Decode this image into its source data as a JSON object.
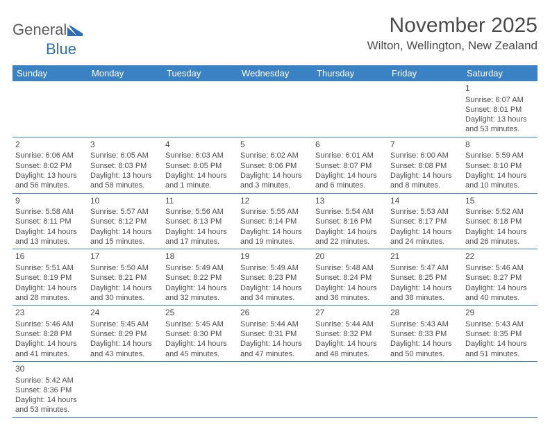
{
  "logo": {
    "part1": "General",
    "part2": "Blue"
  },
  "title": "November 2025",
  "location": "Wilton, Wellington, New Zealand",
  "colors": {
    "header_bg": "#3b82c4",
    "header_text": "#ffffff",
    "text": "#4a4a4a",
    "rule": "#3b82c4",
    "background": "#ffffff"
  },
  "dow": [
    "Sunday",
    "Monday",
    "Tuesday",
    "Wednesday",
    "Thursday",
    "Friday",
    "Saturday"
  ],
  "weeks": [
    [
      null,
      null,
      null,
      null,
      null,
      null,
      {
        "n": "1",
        "sr": "Sunrise: 6:07 AM",
        "ss": "Sunset: 8:01 PM",
        "d1": "Daylight: 13 hours",
        "d2": "and 53 minutes."
      }
    ],
    [
      {
        "n": "2",
        "sr": "Sunrise: 6:06 AM",
        "ss": "Sunset: 8:02 PM",
        "d1": "Daylight: 13 hours",
        "d2": "and 56 minutes."
      },
      {
        "n": "3",
        "sr": "Sunrise: 6:05 AM",
        "ss": "Sunset: 8:03 PM",
        "d1": "Daylight: 13 hours",
        "d2": "and 58 minutes."
      },
      {
        "n": "4",
        "sr": "Sunrise: 6:03 AM",
        "ss": "Sunset: 8:05 PM",
        "d1": "Daylight: 14 hours",
        "d2": "and 1 minute."
      },
      {
        "n": "5",
        "sr": "Sunrise: 6:02 AM",
        "ss": "Sunset: 8:06 PM",
        "d1": "Daylight: 14 hours",
        "d2": "and 3 minutes."
      },
      {
        "n": "6",
        "sr": "Sunrise: 6:01 AM",
        "ss": "Sunset: 8:07 PM",
        "d1": "Daylight: 14 hours",
        "d2": "and 6 minutes."
      },
      {
        "n": "7",
        "sr": "Sunrise: 6:00 AM",
        "ss": "Sunset: 8:08 PM",
        "d1": "Daylight: 14 hours",
        "d2": "and 8 minutes."
      },
      {
        "n": "8",
        "sr": "Sunrise: 5:59 AM",
        "ss": "Sunset: 8:10 PM",
        "d1": "Daylight: 14 hours",
        "d2": "and 10 minutes."
      }
    ],
    [
      {
        "n": "9",
        "sr": "Sunrise: 5:58 AM",
        "ss": "Sunset: 8:11 PM",
        "d1": "Daylight: 14 hours",
        "d2": "and 13 minutes."
      },
      {
        "n": "10",
        "sr": "Sunrise: 5:57 AM",
        "ss": "Sunset: 8:12 PM",
        "d1": "Daylight: 14 hours",
        "d2": "and 15 minutes."
      },
      {
        "n": "11",
        "sr": "Sunrise: 5:56 AM",
        "ss": "Sunset: 8:13 PM",
        "d1": "Daylight: 14 hours",
        "d2": "and 17 minutes."
      },
      {
        "n": "12",
        "sr": "Sunrise: 5:55 AM",
        "ss": "Sunset: 8:14 PM",
        "d1": "Daylight: 14 hours",
        "d2": "and 19 minutes."
      },
      {
        "n": "13",
        "sr": "Sunrise: 5:54 AM",
        "ss": "Sunset: 8:16 PM",
        "d1": "Daylight: 14 hours",
        "d2": "and 22 minutes."
      },
      {
        "n": "14",
        "sr": "Sunrise: 5:53 AM",
        "ss": "Sunset: 8:17 PM",
        "d1": "Daylight: 14 hours",
        "d2": "and 24 minutes."
      },
      {
        "n": "15",
        "sr": "Sunrise: 5:52 AM",
        "ss": "Sunset: 8:18 PM",
        "d1": "Daylight: 14 hours",
        "d2": "and 26 minutes."
      }
    ],
    [
      {
        "n": "16",
        "sr": "Sunrise: 5:51 AM",
        "ss": "Sunset: 8:19 PM",
        "d1": "Daylight: 14 hours",
        "d2": "and 28 minutes."
      },
      {
        "n": "17",
        "sr": "Sunrise: 5:50 AM",
        "ss": "Sunset: 8:21 PM",
        "d1": "Daylight: 14 hours",
        "d2": "and 30 minutes."
      },
      {
        "n": "18",
        "sr": "Sunrise: 5:49 AM",
        "ss": "Sunset: 8:22 PM",
        "d1": "Daylight: 14 hours",
        "d2": "and 32 minutes."
      },
      {
        "n": "19",
        "sr": "Sunrise: 5:49 AM",
        "ss": "Sunset: 8:23 PM",
        "d1": "Daylight: 14 hours",
        "d2": "and 34 minutes."
      },
      {
        "n": "20",
        "sr": "Sunrise: 5:48 AM",
        "ss": "Sunset: 8:24 PM",
        "d1": "Daylight: 14 hours",
        "d2": "and 36 minutes."
      },
      {
        "n": "21",
        "sr": "Sunrise: 5:47 AM",
        "ss": "Sunset: 8:25 PM",
        "d1": "Daylight: 14 hours",
        "d2": "and 38 minutes."
      },
      {
        "n": "22",
        "sr": "Sunrise: 5:46 AM",
        "ss": "Sunset: 8:27 PM",
        "d1": "Daylight: 14 hours",
        "d2": "and 40 minutes."
      }
    ],
    [
      {
        "n": "23",
        "sr": "Sunrise: 5:46 AM",
        "ss": "Sunset: 8:28 PM",
        "d1": "Daylight: 14 hours",
        "d2": "and 41 minutes."
      },
      {
        "n": "24",
        "sr": "Sunrise: 5:45 AM",
        "ss": "Sunset: 8:29 PM",
        "d1": "Daylight: 14 hours",
        "d2": "and 43 minutes."
      },
      {
        "n": "25",
        "sr": "Sunrise: 5:45 AM",
        "ss": "Sunset: 8:30 PM",
        "d1": "Daylight: 14 hours",
        "d2": "and 45 minutes."
      },
      {
        "n": "26",
        "sr": "Sunrise: 5:44 AM",
        "ss": "Sunset: 8:31 PM",
        "d1": "Daylight: 14 hours",
        "d2": "and 47 minutes."
      },
      {
        "n": "27",
        "sr": "Sunrise: 5:44 AM",
        "ss": "Sunset: 8:32 PM",
        "d1": "Daylight: 14 hours",
        "d2": "and 48 minutes."
      },
      {
        "n": "28",
        "sr": "Sunrise: 5:43 AM",
        "ss": "Sunset: 8:33 PM",
        "d1": "Daylight: 14 hours",
        "d2": "and 50 minutes."
      },
      {
        "n": "29",
        "sr": "Sunrise: 5:43 AM",
        "ss": "Sunset: 8:35 PM",
        "d1": "Daylight: 14 hours",
        "d2": "and 51 minutes."
      }
    ],
    [
      {
        "n": "30",
        "sr": "Sunrise: 5:42 AM",
        "ss": "Sunset: 8:36 PM",
        "d1": "Daylight: 14 hours",
        "d2": "and 53 minutes."
      },
      null,
      null,
      null,
      null,
      null,
      null
    ]
  ]
}
